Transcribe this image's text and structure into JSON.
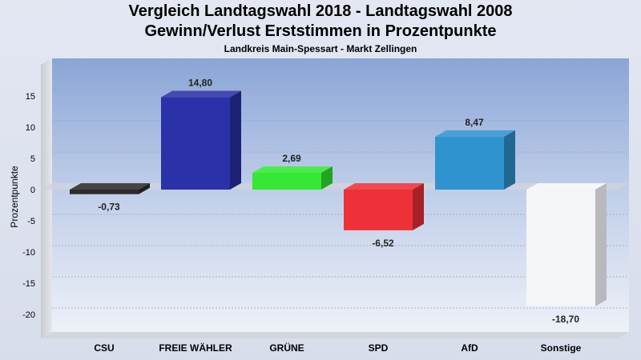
{
  "title": "Vergleich Landtagswahl 2018 - Landtagswahl 2008",
  "subtitle": "Gewinn/Verlust Erststimmen in Prozentpunkte",
  "caption": "Landkreis Main-Spessart - Markt Zellingen",
  "chart_data": {
    "type": "bar",
    "title": "Vergleich Landtagswahl 2018 - Landtagswahl 2008",
    "subtitle": "Gewinn/Verlust Erststimmen in Prozentpunkte",
    "xlabel": "",
    "ylabel": "Prozentpunkte",
    "ylim": [
      -22,
      20
    ],
    "yticks": [
      15,
      10,
      5,
      0,
      -5,
      -10,
      -15,
      -20
    ],
    "ytick_labels": [
      "15",
      "10",
      "5",
      "0",
      "-5",
      "-10",
      "-15",
      "-20"
    ],
    "grid": true,
    "categories": [
      "CSU",
      "FREIE WÄHLER",
      "GRÜNE",
      "SPD",
      "AfD",
      "Sonstige"
    ],
    "values": [
      -0.73,
      14.8,
      2.69,
      -6.52,
      8.47,
      -18.7
    ],
    "value_labels": [
      "-0,73",
      "14,80",
      "2,69",
      "-6,52",
      "8,47",
      "-18,70"
    ],
    "colors": [
      "#2c2c2c",
      "#2b31a8",
      "#34e834",
      "#ee3038",
      "#2f93d0",
      "#f4f5f8"
    ]
  }
}
